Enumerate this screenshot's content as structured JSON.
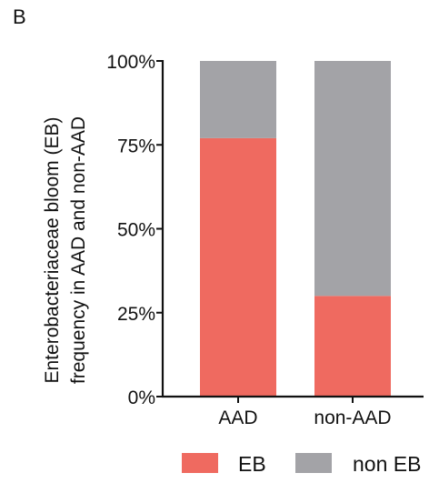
{
  "panel_label": "B",
  "chart_data": {
    "type": "bar",
    "stacked": true,
    "categories": [
      "AAD",
      "non-AAD"
    ],
    "series": [
      {
        "name": "EB",
        "values": [
          77,
          30
        ],
        "color": "#ef6a60"
      },
      {
        "name": "non EB",
        "values": [
          23,
          70
        ],
        "color": "#a3a3a7"
      }
    ],
    "ylabel_lines": [
      "Enterobacteriaceae bloom (EB)",
      "frequency  in AAD and non-AAD"
    ],
    "xlabel": "",
    "ylim": [
      0,
      100
    ],
    "yticks": [
      0,
      25,
      50,
      75,
      100
    ],
    "ytick_labels": [
      "0%",
      "25%",
      "50%",
      "75%",
      "100%"
    ],
    "legend_position": "bottom",
    "grid": false
  }
}
